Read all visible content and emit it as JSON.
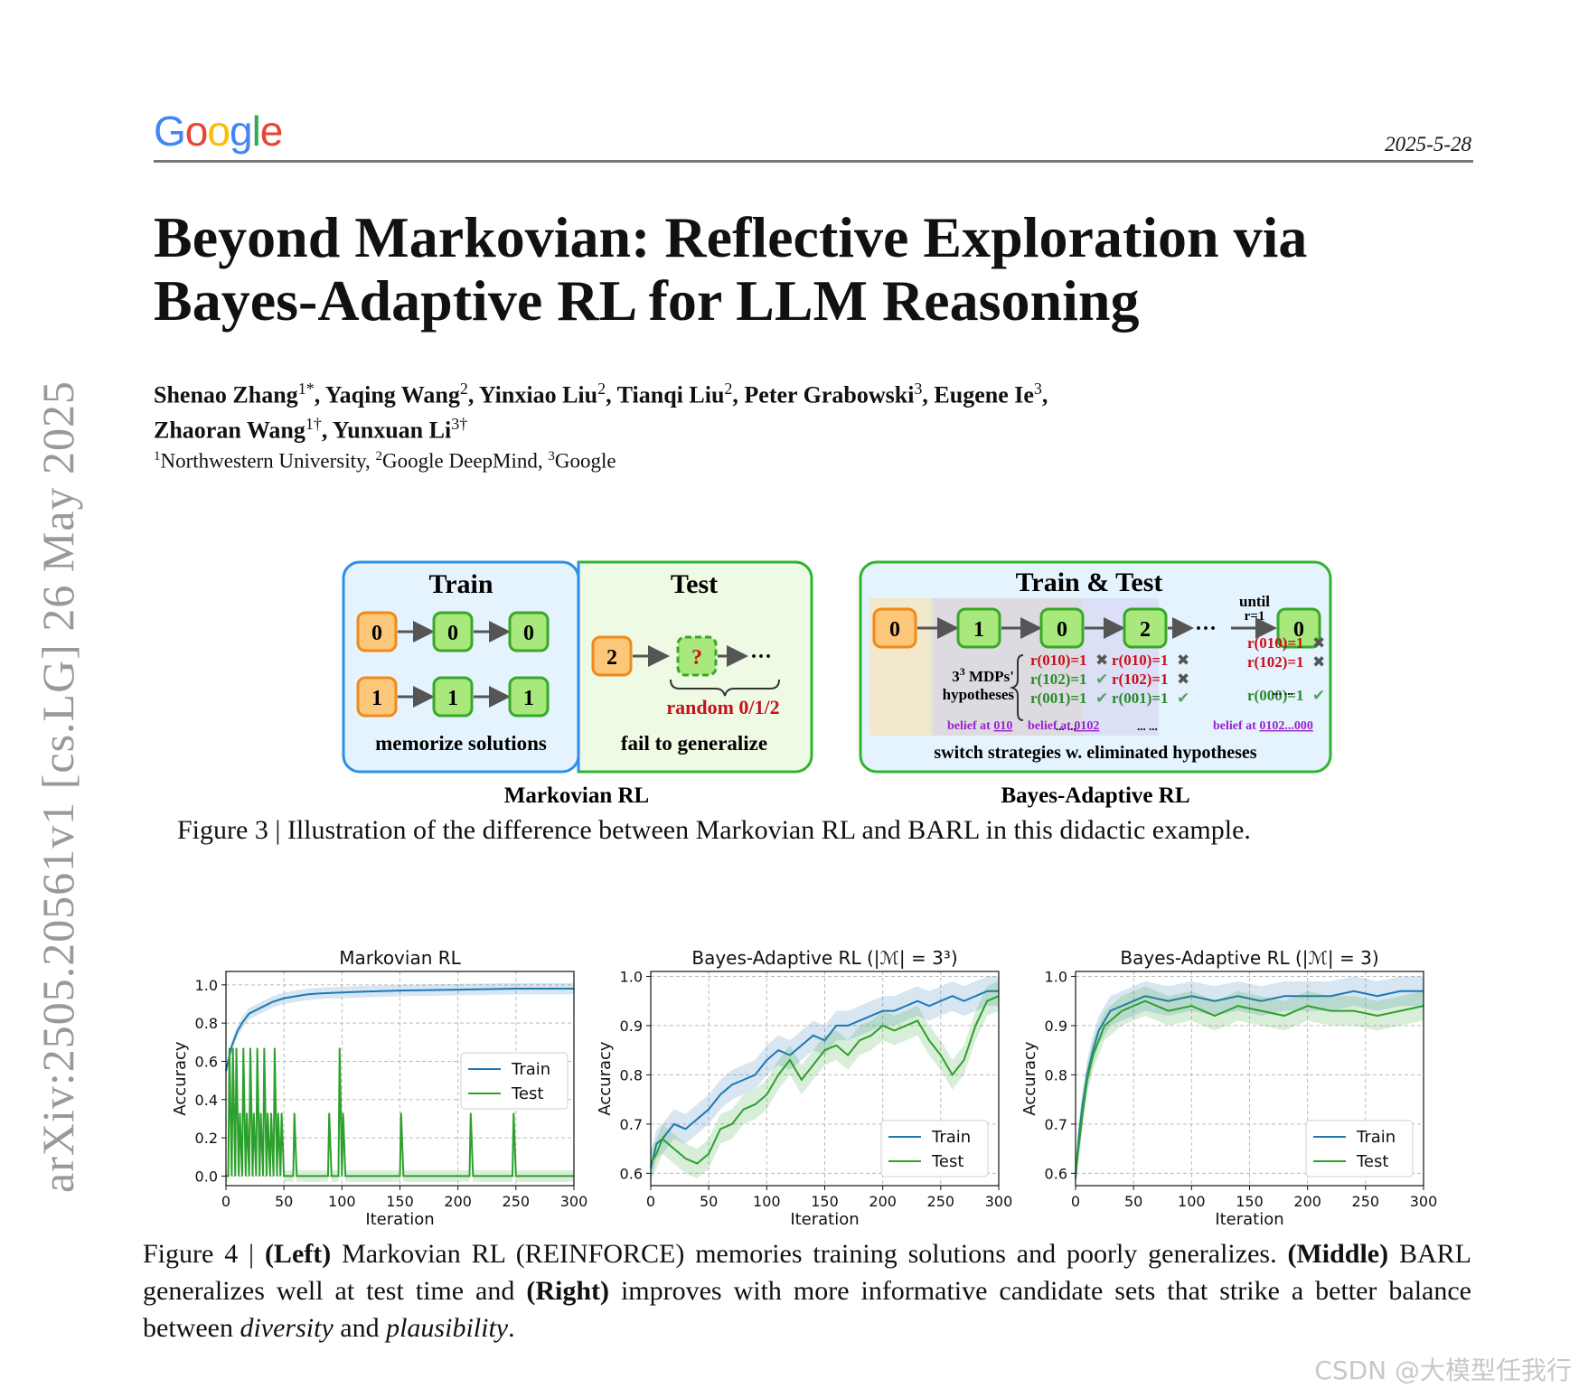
{
  "header": {
    "logo": "Google",
    "logo_colors": [
      "#4285F4",
      "#EA4335",
      "#FBBC05",
      "#4285F4",
      "#34A853",
      "#EA4335"
    ],
    "date": "2025-5-28"
  },
  "paper": {
    "title_line1": "Beyond Markovian: Reflective Exploration via",
    "title_line2": "Bayes-Adaptive RL for LLM Reasoning",
    "authors_line1": [
      {
        "name": "Shenao Zhang",
        "sup": "1*"
      },
      {
        "name": "Yaqing Wang",
        "sup": "2"
      },
      {
        "name": "Yinxiao Liu",
        "sup": "2"
      },
      {
        "name": "Tianqi Liu",
        "sup": "2"
      },
      {
        "name": "Peter Grabowski",
        "sup": "3"
      },
      {
        "name": "Eugene Ie",
        "sup": "3"
      }
    ],
    "authors_line2": [
      {
        "name": "Zhaoran Wang",
        "sup": "1†"
      },
      {
        "name": "Yunxuan Li",
        "sup": "3†"
      }
    ],
    "affiliations": [
      {
        "sup": "1",
        "name": "Northwestern University"
      },
      {
        "sup": "2",
        "name": "Google DeepMind"
      },
      {
        "sup": "3",
        "name": "Google"
      }
    ]
  },
  "side_stamp": "arXiv:2505.20561v1  [cs.LG]  26 May 2025",
  "figure3": {
    "markov": {
      "train_header": "Train",
      "test_header": "Test",
      "train_row1": [
        "0",
        "0",
        "0"
      ],
      "train_row2": [
        "1",
        "1",
        "1"
      ],
      "test_start": "2",
      "test_unknown": "?",
      "ellipsis": "···",
      "random_label": "random 0/1/2",
      "train_caption": "memorize solutions",
      "test_caption": "fail to generalize",
      "label": "Markovian RL"
    },
    "bayes": {
      "header": "Train & Test",
      "nodes": [
        "0",
        "1",
        "0",
        "2",
        "0"
      ],
      "dots": "···",
      "until": "until",
      "until_r": "r=1",
      "hyp_line1": "3",
      "hyp_sup": "3",
      "hyp_line1_rest": " MDPs'",
      "hyp_line2": "hypotheses",
      "col1": [
        {
          "text": "r(010)=1",
          "mark": "✖",
          "ok": false
        },
        {
          "text": "r(102)=1",
          "mark": "✔",
          "ok": true
        },
        {
          "text": "r(001)=1",
          "mark": "✔",
          "ok": true
        }
      ],
      "col2": [
        {
          "text": "r(010)=1",
          "mark": "✖",
          "ok": false
        },
        {
          "text": "r(102)=1",
          "mark": "✖",
          "ok": false
        },
        {
          "text": "r(001)=1",
          "mark": "✔",
          "ok": true
        }
      ],
      "col3": [
        {
          "text": "r(010)=1",
          "mark": "✖",
          "ok": false
        },
        {
          "text": "r(102)=1",
          "mark": "✖",
          "ok": false
        },
        {
          "text": "r(000)=1",
          "mark": "✔",
          "ok": true
        }
      ],
      "more": "... ...",
      "belief_prefix": "belief at",
      "belief1": "010",
      "belief2": "0102",
      "belief3": "0102...000",
      "footer": "switch strategies w. eliminated hypotheses",
      "label": "Bayes-Adaptive RL"
    },
    "caption": "Figure 3 | Illustration of the difference between Markovian RL and BARL in this didactic example."
  },
  "chart_data": [
    {
      "type": "line",
      "title": "Markovian RL",
      "xlabel": "Iteration",
      "ylabel": "Accuracy",
      "xlim": [
        0,
        300
      ],
      "ylim": [
        -0.05,
        1.07
      ],
      "xticks": [
        0,
        50,
        100,
        150,
        200,
        250,
        300
      ],
      "yticks": [
        0.0,
        0.2,
        0.4,
        0.6,
        0.8,
        1.0
      ],
      "ytick_labels": [
        "0.0",
        "0.2",
        "0.4",
        "0.6",
        "0.8",
        "1.0"
      ],
      "grid": true,
      "legend_position": "right",
      "series": [
        {
          "name": "Train",
          "color": "#1f77b4",
          "x": [
            0,
            5,
            10,
            15,
            20,
            30,
            40,
            50,
            60,
            70,
            80,
            100,
            120,
            150,
            200,
            250,
            300
          ],
          "y": [
            0.55,
            0.68,
            0.76,
            0.81,
            0.85,
            0.88,
            0.91,
            0.93,
            0.94,
            0.95,
            0.955,
            0.96,
            0.965,
            0.97,
            0.975,
            0.98,
            0.98
          ]
        },
        {
          "name": "Test",
          "color": "#2ca02c",
          "x": [
            0,
            2,
            3,
            5,
            6,
            8,
            9,
            11,
            12,
            14,
            15,
            17,
            18,
            20,
            21,
            23,
            24,
            26,
            27,
            29,
            30,
            32,
            33,
            35,
            36,
            38,
            39,
            41,
            42,
            44,
            45,
            47,
            48,
            50,
            55,
            58,
            59,
            61,
            62,
            70,
            88,
            89,
            91,
            92,
            97,
            98,
            100,
            101,
            103,
            104,
            150,
            151,
            153,
            154,
            210,
            211,
            213,
            214,
            240,
            247,
            248,
            250,
            251,
            300
          ],
          "y": [
            0,
            0,
            0.67,
            0,
            0.67,
            0,
            0.67,
            0,
            0.33,
            0,
            0.67,
            0,
            0.33,
            0,
            0.67,
            0,
            0.33,
            0,
            0.67,
            0,
            0.33,
            0,
            0.67,
            0,
            0.33,
            0,
            0.33,
            0,
            0.67,
            0,
            0.33,
            0,
            0.33,
            0,
            0,
            0,
            0.33,
            0,
            0,
            0,
            0,
            0.33,
            0,
            0,
            0,
            0.67,
            0,
            0.33,
            0,
            0,
            0,
            0.33,
            0,
            0,
            0,
            0.33,
            0,
            0,
            0,
            0,
            0.33,
            0,
            0,
            0
          ]
        }
      ]
    },
    {
      "type": "line",
      "title": "Bayes-Adaptive RL (|ℳ| = 3³)",
      "xlabel": "Iteration",
      "ylabel": "Accuracy",
      "xlim": [
        0,
        300
      ],
      "ylim": [
        0.575,
        1.01
      ],
      "xticks": [
        0,
        50,
        100,
        150,
        200,
        250,
        300
      ],
      "yticks": [
        0.6,
        0.7,
        0.8,
        0.9,
        1.0
      ],
      "ytick_labels": [
        "0.6",
        "0.7",
        "0.8",
        "0.9",
        "1.0"
      ],
      "grid": true,
      "legend_position": "lower right",
      "series": [
        {
          "name": "Train",
          "color": "#1f77b4",
          "x": [
            0,
            5,
            10,
            20,
            30,
            40,
            50,
            60,
            70,
            80,
            90,
            100,
            110,
            120,
            130,
            140,
            150,
            160,
            170,
            180,
            190,
            200,
            210,
            220,
            230,
            240,
            250,
            260,
            270,
            280,
            290,
            300
          ],
          "y": [
            0.61,
            0.66,
            0.67,
            0.7,
            0.69,
            0.71,
            0.73,
            0.76,
            0.78,
            0.79,
            0.8,
            0.83,
            0.85,
            0.84,
            0.86,
            0.88,
            0.87,
            0.9,
            0.9,
            0.91,
            0.92,
            0.93,
            0.93,
            0.94,
            0.95,
            0.94,
            0.95,
            0.96,
            0.95,
            0.96,
            0.97,
            0.97
          ]
        },
        {
          "name": "Test",
          "color": "#2ca02c",
          "x": [
            0,
            5,
            10,
            20,
            30,
            40,
            50,
            60,
            70,
            80,
            90,
            100,
            110,
            120,
            130,
            140,
            150,
            160,
            170,
            180,
            190,
            200,
            210,
            220,
            230,
            240,
            250,
            260,
            270,
            280,
            290,
            300
          ],
          "y": [
            0.62,
            0.64,
            0.67,
            0.65,
            0.63,
            0.62,
            0.64,
            0.69,
            0.7,
            0.73,
            0.74,
            0.76,
            0.8,
            0.83,
            0.79,
            0.82,
            0.85,
            0.86,
            0.84,
            0.87,
            0.88,
            0.9,
            0.89,
            0.9,
            0.91,
            0.87,
            0.84,
            0.8,
            0.83,
            0.9,
            0.95,
            0.96
          ]
        }
      ]
    },
    {
      "type": "line",
      "title": "Bayes-Adaptive RL (|ℳ| = 3)",
      "xlabel": "Iteration",
      "ylabel": "Accuracy",
      "xlim": [
        0,
        300
      ],
      "ylim": [
        0.575,
        1.01
      ],
      "xticks": [
        0,
        50,
        100,
        150,
        200,
        250,
        300
      ],
      "yticks": [
        0.6,
        0.7,
        0.8,
        0.9,
        1.0
      ],
      "ytick_labels": [
        "0.6",
        "0.7",
        "0.8",
        "0.9",
        "1.0"
      ],
      "grid": true,
      "legend_position": "lower right",
      "series": [
        {
          "name": "Train",
          "color": "#1f77b4",
          "x": [
            0,
            3,
            6,
            10,
            15,
            20,
            25,
            30,
            40,
            50,
            60,
            80,
            100,
            120,
            140,
            160,
            180,
            200,
            220,
            240,
            260,
            280,
            300
          ],
          "y": [
            0.59,
            0.68,
            0.74,
            0.8,
            0.85,
            0.89,
            0.91,
            0.93,
            0.94,
            0.95,
            0.96,
            0.95,
            0.96,
            0.95,
            0.96,
            0.95,
            0.96,
            0.96,
            0.96,
            0.97,
            0.96,
            0.97,
            0.97
          ]
        },
        {
          "name": "Test",
          "color": "#2ca02c",
          "x": [
            0,
            3,
            6,
            10,
            15,
            20,
            25,
            30,
            40,
            50,
            60,
            80,
            100,
            120,
            140,
            160,
            180,
            200,
            220,
            240,
            260,
            280,
            300
          ],
          "y": [
            0.6,
            0.66,
            0.72,
            0.79,
            0.84,
            0.87,
            0.9,
            0.91,
            0.93,
            0.94,
            0.95,
            0.93,
            0.94,
            0.92,
            0.94,
            0.93,
            0.92,
            0.94,
            0.93,
            0.93,
            0.92,
            0.93,
            0.94
          ]
        }
      ]
    }
  ],
  "figure4": {
    "caption_prefix": "Figure 4 | ",
    "left_bold": "(Left)",
    "left_text": " Markovian RL (REINFORCE) memories training solutions and poorly generalizes. ",
    "middle_bold": "(Middle)",
    "middle_text": " BARL generalizes well at test time and ",
    "right_bold": "(Right)",
    "right_text": " improves with more informative candidate sets that strike a better balance between ",
    "em1": "diversity",
    "and_text": " and ",
    "em2": "plausibility",
    "end": "."
  },
  "watermark": "CSDN @大模型任我行"
}
